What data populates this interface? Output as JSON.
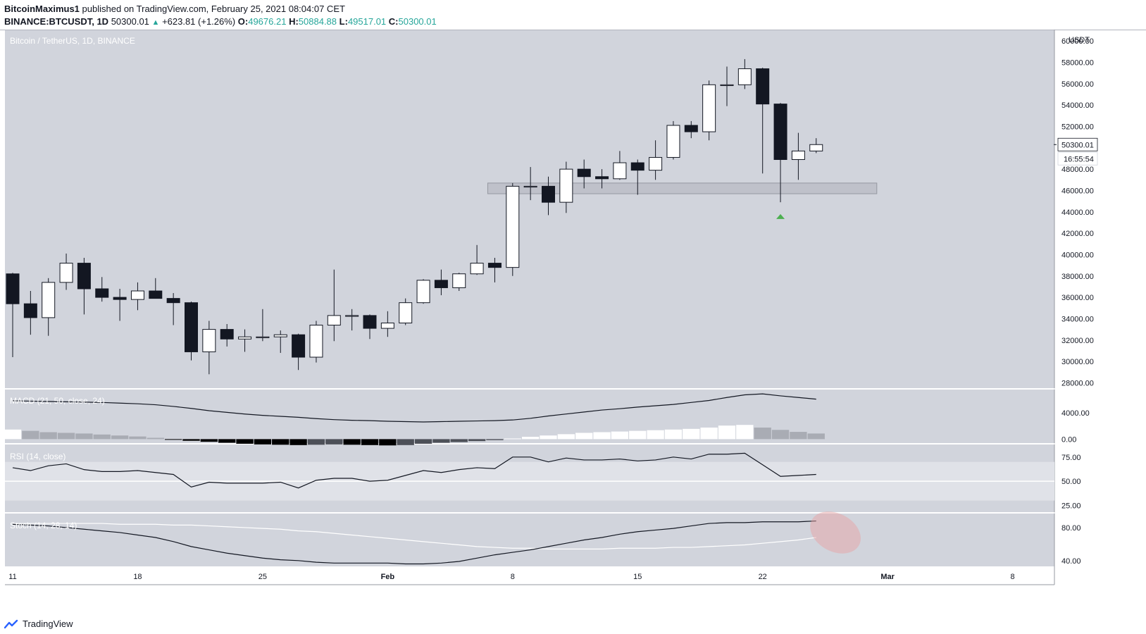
{
  "header": {
    "publisher": "BitcoinMaximus1",
    "published_text": "published on TradingView.com, February 25, 2021 08:04:07 CET",
    "symbol": "BINANCE:BTCUSDT, 1D",
    "last": "50300.01",
    "change_arrow": "▲",
    "change": "+623.81 (+1.26%)",
    "o_label": "O:",
    "o": "49676.21",
    "h_label": "H:",
    "h": "50884.88",
    "l_label": "L:",
    "l": "49517.01",
    "c_label": "C:",
    "c": "50300.01"
  },
  "footer": {
    "brand": "TradingView",
    "logo_icon": "tradingview-logo-icon"
  },
  "colors": {
    "pane_bg": "#d1d4dc",
    "bull_fill": "#ffffff",
    "bear_fill": "#131722",
    "accent": "#26a69a",
    "signal_circle": "#e8a0a0"
  },
  "chart_data": [
    {
      "type": "candlestick",
      "title": "Bitcoin / TetherUS, 1D, BINANCE",
      "currency_label": "USDT",
      "ylim": [
        27500,
        61000
      ],
      "y_ticks": [
        28000,
        30000,
        32000,
        34000,
        36000,
        38000,
        40000,
        42000,
        44000,
        46000,
        48000,
        50000,
        52000,
        54000,
        56000,
        58000,
        60000
      ],
      "y_tick_labels": [
        "28000.00",
        "30000.00",
        "32000.00",
        "34000.00",
        "36000.00",
        "38000.00",
        "40000.00",
        "42000.00",
        "44000.00",
        "46000.00",
        "48000.00",
        "50000.00",
        "52000.00",
        "54000.00",
        "56000.00",
        "58000.00",
        "60000.00"
      ],
      "x_ticks": [
        "11",
        "18",
        "25",
        "Feb",
        "8",
        "15",
        "22",
        "Mar",
        "8"
      ],
      "x_tick_dates": [
        "2021-01-11",
        "2021-01-18",
        "2021-01-25",
        "2021-02-01",
        "2021-02-08",
        "2021-02-15",
        "2021-02-22",
        "2021-03-01",
        "2021-03-08"
      ],
      "last_price_label": "50300.01",
      "countdown_label": "16:55:54",
      "candles": [
        {
          "date": "2021-01-11",
          "o": 38200,
          "h": 38300,
          "l": 30400,
          "c": 35400
        },
        {
          "date": "2021-01-12",
          "o": 35400,
          "h": 36600,
          "l": 32500,
          "c": 34100
        },
        {
          "date": "2021-01-13",
          "o": 34100,
          "h": 37800,
          "l": 32400,
          "c": 37400
        },
        {
          "date": "2021-01-14",
          "o": 37400,
          "h": 40100,
          "l": 36700,
          "c": 39200
        },
        {
          "date": "2021-01-15",
          "o": 39200,
          "h": 39700,
          "l": 34400,
          "c": 36800
        },
        {
          "date": "2021-01-16",
          "o": 36800,
          "h": 37900,
          "l": 35600,
          "c": 36000
        },
        {
          "date": "2021-01-17",
          "o": 36000,
          "h": 36800,
          "l": 33800,
          "c": 35800
        },
        {
          "date": "2021-01-18",
          "o": 35800,
          "h": 37400,
          "l": 34800,
          "c": 36600
        },
        {
          "date": "2021-01-19",
          "o": 36600,
          "h": 37800,
          "l": 35900,
          "c": 35900
        },
        {
          "date": "2021-01-20",
          "o": 35900,
          "h": 36400,
          "l": 33400,
          "c": 35500
        },
        {
          "date": "2021-01-21",
          "o": 35500,
          "h": 35600,
          "l": 30100,
          "c": 30900
        },
        {
          "date": "2021-01-22",
          "o": 30900,
          "h": 33800,
          "l": 28800,
          "c": 33000
        },
        {
          "date": "2021-01-23",
          "o": 33000,
          "h": 33500,
          "l": 31400,
          "c": 32100
        },
        {
          "date": "2021-01-24",
          "o": 32100,
          "h": 33000,
          "l": 30900,
          "c": 32300
        },
        {
          "date": "2021-01-25",
          "o": 32300,
          "h": 34900,
          "l": 31900,
          "c": 32300
        },
        {
          "date": "2021-01-26",
          "o": 32300,
          "h": 32900,
          "l": 30800,
          "c": 32500
        },
        {
          "date": "2021-01-27",
          "o": 32500,
          "h": 32600,
          "l": 29200,
          "c": 30400
        },
        {
          "date": "2021-01-28",
          "o": 30400,
          "h": 33800,
          "l": 29900,
          "c": 33400
        },
        {
          "date": "2021-01-29",
          "o": 33400,
          "h": 38600,
          "l": 31900,
          "c": 34300
        },
        {
          "date": "2021-01-30",
          "o": 34300,
          "h": 34900,
          "l": 32900,
          "c": 34300
        },
        {
          "date": "2021-01-31",
          "o": 34300,
          "h": 34400,
          "l": 32100,
          "c": 33100
        },
        {
          "date": "2021-02-01",
          "o": 33100,
          "h": 34700,
          "l": 32300,
          "c": 33600
        },
        {
          "date": "2021-02-02",
          "o": 33600,
          "h": 35900,
          "l": 33400,
          "c": 35500
        },
        {
          "date": "2021-02-03",
          "o": 35500,
          "h": 37700,
          "l": 35400,
          "c": 37600
        },
        {
          "date": "2021-02-04",
          "o": 37600,
          "h": 38600,
          "l": 36200,
          "c": 36900
        },
        {
          "date": "2021-02-05",
          "o": 36900,
          "h": 38300,
          "l": 36600,
          "c": 38200
        },
        {
          "date": "2021-02-06",
          "o": 38200,
          "h": 40900,
          "l": 38100,
          "c": 39200
        },
        {
          "date": "2021-02-07",
          "o": 39200,
          "h": 39700,
          "l": 37400,
          "c": 38800
        },
        {
          "date": "2021-02-08",
          "o": 38800,
          "h": 46700,
          "l": 38000,
          "c": 46400
        },
        {
          "date": "2021-02-09",
          "o": 46400,
          "h": 48200,
          "l": 45100,
          "c": 46400
        },
        {
          "date": "2021-02-10",
          "o": 46400,
          "h": 47300,
          "l": 43700,
          "c": 44900
        },
        {
          "date": "2021-02-11",
          "o": 44900,
          "h": 48700,
          "l": 43900,
          "c": 48000
        },
        {
          "date": "2021-02-12",
          "o": 48000,
          "h": 48900,
          "l": 46200,
          "c": 47300
        },
        {
          "date": "2021-02-13",
          "o": 47300,
          "h": 48000,
          "l": 46200,
          "c": 47100
        },
        {
          "date": "2021-02-14",
          "o": 47100,
          "h": 49700,
          "l": 47000,
          "c": 48600
        },
        {
          "date": "2021-02-15",
          "o": 48600,
          "h": 48900,
          "l": 45600,
          "c": 47900
        },
        {
          "date": "2021-02-16",
          "o": 47900,
          "h": 50700,
          "l": 47000,
          "c": 49100
        },
        {
          "date": "2021-02-17",
          "o": 49100,
          "h": 52500,
          "l": 48900,
          "c": 52100
        },
        {
          "date": "2021-02-18",
          "o": 52100,
          "h": 52500,
          "l": 50900,
          "c": 51500
        },
        {
          "date": "2021-02-19",
          "o": 51500,
          "h": 56300,
          "l": 50700,
          "c": 55900
        },
        {
          "date": "2021-02-20",
          "o": 55900,
          "h": 57600,
          "l": 53900,
          "c": 55900
        },
        {
          "date": "2021-02-21",
          "o": 55900,
          "h": 58300,
          "l": 55500,
          "c": 57400
        },
        {
          "date": "2021-02-22",
          "o": 57400,
          "h": 57500,
          "l": 47600,
          "c": 54100
        },
        {
          "date": "2021-02-23",
          "o": 54100,
          "h": 54200,
          "l": 44900,
          "c": 48900
        },
        {
          "date": "2021-02-24",
          "o": 48900,
          "h": 51400,
          "l": 47000,
          "c": 49700
        },
        {
          "date": "2021-02-25",
          "o": 49700,
          "h": 50900,
          "l": 49500,
          "c": 50300
        }
      ],
      "annotations": [
        {
          "type": "support-zone",
          "from": "2021-02-07",
          "to": "2021-02-28",
          "y_low": 45700,
          "y_high": 46700
        },
        {
          "type": "arrow-up",
          "date": "2021-02-23",
          "y": 43600
        }
      ]
    },
    {
      "type": "bar-line",
      "title": "MACD (21, 50, close, 24)",
      "ylim": [
        -600,
        7500
      ],
      "y_ticks": [
        0,
        4000
      ],
      "y_tick_labels": [
        "0.00",
        "4000.00"
      ],
      "macd": [
        5800,
        5750,
        5700,
        5650,
        5600,
        5550,
        5450,
        5350,
        5200,
        4950,
        4650,
        4300,
        4050,
        3800,
        3600,
        3450,
        3300,
        3100,
        2950,
        2850,
        2800,
        2700,
        2650,
        2600,
        2650,
        2700,
        2750,
        2800,
        2900,
        3150,
        3500,
        3800,
        4100,
        4400,
        4600,
        4850,
        5050,
        5250,
        5550,
        5850,
        6300,
        6700,
        6850,
        6550,
        6300,
        6050
      ],
      "histogram": [
        1450,
        1250,
        1050,
        950,
        850,
        700,
        550,
        400,
        200,
        -100,
        -250,
        -400,
        -550,
        -700,
        -800,
        -850,
        -900,
        -850,
        -800,
        -850,
        -900,
        -950,
        -900,
        -700,
        -550,
        -450,
        -300,
        -150,
        100,
        350,
        550,
        750,
        950,
        1050,
        1150,
        1250,
        1350,
        1450,
        1550,
        1750,
        2050,
        2150,
        1750,
        1400,
        1100,
        850
      ]
    },
    {
      "type": "line",
      "title": "RSI (14, close)",
      "ylim": [
        18,
        88
      ],
      "y_ticks": [
        25,
        50,
        75
      ],
      "y_tick_labels": [
        "25.00",
        "50.00",
        "75.00"
      ],
      "band": [
        30,
        70
      ],
      "level": 50,
      "values": [
        64,
        61,
        66,
        68,
        62,
        60,
        60,
        61,
        59,
        57,
        44,
        49,
        48,
        48,
        48,
        49,
        43,
        51,
        53,
        53,
        50,
        51,
        56,
        61,
        59,
        62,
        64,
        63,
        75,
        75,
        70,
        74,
        72,
        72,
        73,
        71,
        72,
        75,
        73,
        78,
        78,
        79,
        67,
        55,
        56,
        57
      ]
    },
    {
      "type": "line",
      "title": "Stoch (14, 28, 14)",
      "ylim": [
        33,
        97
      ],
      "y_ticks": [
        40,
        80
      ],
      "y_tick_labels": [
        "40.00",
        "80.00"
      ],
      "k": [
        84,
        83,
        82,
        80,
        78,
        76,
        74,
        71,
        68,
        63,
        57,
        53,
        49,
        46,
        43,
        41,
        40,
        38,
        37,
        37,
        37,
        37,
        36,
        36,
        37,
        39,
        43,
        47,
        50,
        53,
        57,
        61,
        65,
        68,
        72,
        75,
        77,
        79,
        82,
        85,
        86,
        86,
        87,
        87,
        87,
        88
      ],
      "d": [
        85,
        85,
        85,
        85,
        85,
        85,
        84,
        84,
        84,
        83,
        83,
        82,
        81,
        80,
        79,
        78,
        76,
        75,
        73,
        71,
        69,
        67,
        65,
        63,
        61,
        59,
        57,
        56,
        55,
        55,
        54,
        54,
        54,
        54,
        55,
        55,
        55,
        56,
        56,
        57,
        58,
        59,
        61,
        63,
        65,
        68
      ],
      "highlight": {
        "shape": "ellipse",
        "date": "2021-02-26",
        "y": 74
      }
    }
  ]
}
